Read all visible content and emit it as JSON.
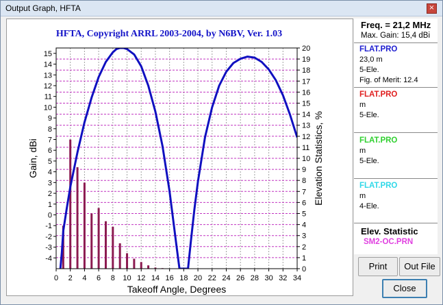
{
  "window": {
    "title": "Output Graph, HFTA",
    "close_glyph": "×"
  },
  "plot": {
    "title": "HFTA, Copyright ARRL 2003-2004, by N6BV, Ver. 1.03",
    "xlabel": "Takeoff Angle, Degrees",
    "ylabel_left": "Gain, dBi",
    "ylabel_right": "Elevation Statistics, %"
  },
  "side": {
    "freq": "Freq. = 21,2 MHz",
    "max_gain": "Max. Gain: 15,4 dBi",
    "entries": [
      {
        "name": "FLAT.PRO",
        "color": "#2020d0",
        "lines": [
          "23,0 m",
          "5-Ele.",
          "Fig. of Merit:  12.4"
        ]
      },
      {
        "name": "FLAT.PRO",
        "color": "#e02020",
        "lines": [
          " m",
          "5-Ele."
        ]
      },
      {
        "name": "FLAT.PRO",
        "color": "#30d030",
        "lines": [
          " m",
          "5-Ele."
        ]
      },
      {
        "name": "FLAT.PRO",
        "color": "#30d8e8",
        "lines": [
          " m",
          "4-Ele."
        ]
      }
    ],
    "elev_title": "Elev. Statistic",
    "elev_file": "SM2-OC.PRN"
  },
  "buttons": {
    "print": "Print",
    "out_file": "Out File",
    "close": "Close"
  },
  "chart_data": {
    "type": "line",
    "title": "HFTA, Copyright ARRL 2003-2004, by N6BV, Ver. 1.03",
    "xlabel": "Takeoff Angle, Degrees",
    "ylabel": "Gain, dBi",
    "y2label": "Elevation Statistics, %",
    "xlim": [
      0,
      34
    ],
    "ylim": [
      -5,
      15.5
    ],
    "y2lim": [
      0,
      20
    ],
    "xticks": [
      0,
      2,
      4,
      6,
      8,
      10,
      12,
      14,
      16,
      18,
      20,
      22,
      24,
      26,
      28,
      30,
      32,
      34
    ],
    "yticks": [
      -4,
      -3,
      -2,
      -1,
      0,
      1,
      2,
      3,
      4,
      5,
      6,
      7,
      8,
      9,
      10,
      11,
      12,
      13,
      14,
      15
    ],
    "y2ticks": [
      0,
      1,
      2,
      3,
      4,
      5,
      6,
      7,
      8,
      9,
      10,
      11,
      12,
      13,
      14,
      15,
      16,
      17,
      18,
      19,
      20
    ],
    "grid": true,
    "series": [
      {
        "name": "FLAT.PRO",
        "color": "#1010c0",
        "x": [
          0.6,
          0.8,
          1,
          1.5,
          2,
          3,
          4,
          5,
          6,
          7,
          8,
          8.5,
          9,
          9.5,
          10,
          11,
          12,
          13,
          14,
          15,
          16,
          16.5,
          17,
          17.4,
          18.6,
          19,
          19.5,
          20,
          21,
          22,
          23,
          24,
          25,
          26,
          27,
          28,
          29,
          30,
          31,
          32,
          33,
          34
        ],
        "y": [
          -5,
          -3.5,
          -1.5,
          0.6,
          2.6,
          5.8,
          8.6,
          10.9,
          12.8,
          14.2,
          15.1,
          15.4,
          15.5,
          15.5,
          15.4,
          14.9,
          13.8,
          12,
          9.6,
          6.4,
          2.2,
          -0.4,
          -3,
          -5,
          -5,
          -2.5,
          0.5,
          3.1,
          7.2,
          10,
          12,
          13.3,
          14.1,
          14.5,
          14.7,
          14.6,
          14.2,
          13.5,
          12.5,
          11.1,
          9.3,
          7.2
        ]
      }
    ],
    "bars": {
      "name": "SM2-OC.PRN",
      "color": "#8b1a50",
      "x": [
        1,
        2,
        3,
        4,
        5,
        6,
        7,
        8,
        9,
        10,
        11,
        12,
        13,
        14,
        15
      ],
      "values": [
        3.9,
        11.7,
        9.2,
        7.8,
        5,
        5.5,
        4.3,
        3.8,
        2.3,
        1.4,
        0.9,
        0.6,
        0.3,
        0.1,
        0.05
      ]
    }
  }
}
